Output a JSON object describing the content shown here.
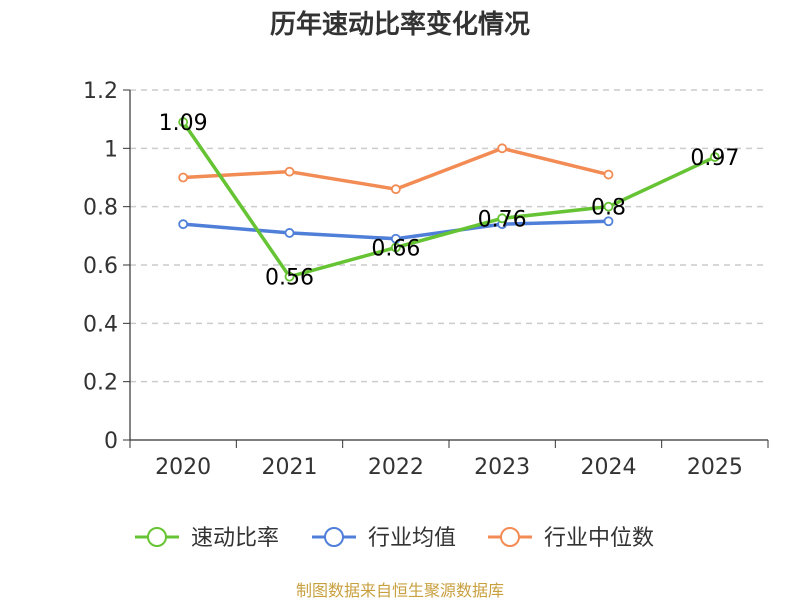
{
  "chart_data": {
    "type": "line",
    "title": "历年速动比率变化情况",
    "categories": [
      "2020",
      "2021",
      "2022",
      "2023",
      "2024",
      "2025"
    ],
    "ylim": [
      0,
      1.2
    ],
    "yticks": [
      "0",
      "0.2",
      "0.4",
      "0.6",
      "0.8",
      "1",
      "1.2"
    ],
    "grid": "horizontal dashed",
    "legend_position": "bottom",
    "series": [
      {
        "name": "速动比率",
        "color": "#66c434",
        "values": [
          1.09,
          0.56,
          0.66,
          0.76,
          0.8,
          0.97
        ],
        "labels": [
          "1.09",
          "0.56",
          "0.66",
          "0.76",
          "0.8",
          "0.97"
        ]
      },
      {
        "name": "行业均值",
        "color": "#4f7fd8",
        "values": [
          0.74,
          0.71,
          0.69,
          0.74,
          0.75,
          null
        ]
      },
      {
        "name": "行业中位数",
        "color": "#f28b54",
        "values": [
          0.9,
          0.92,
          0.86,
          1.0,
          0.91,
          null
        ]
      }
    ],
    "source": "制图数据来自恒生聚源数据库"
  }
}
